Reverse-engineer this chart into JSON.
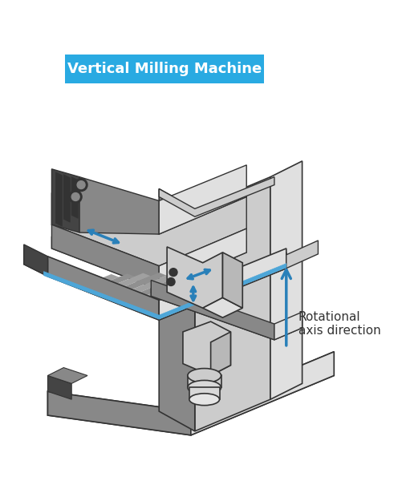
{
  "title": "Vertical Milling Machine",
  "annotation": "Rotational\naxis direction",
  "bg_color": "#ffffff",
  "label_bg": "#29aae2",
  "label_text_color": "#ffffff",
  "label_fontsize": 13,
  "arrow_color": "#2980b9",
  "dark_color": "#444444",
  "mid_color": "#888888",
  "light_color": "#cccccc",
  "lighter_color": "#e0e0e0",
  "darkest_color": "#333333",
  "blue_accent": "#4da6d8"
}
